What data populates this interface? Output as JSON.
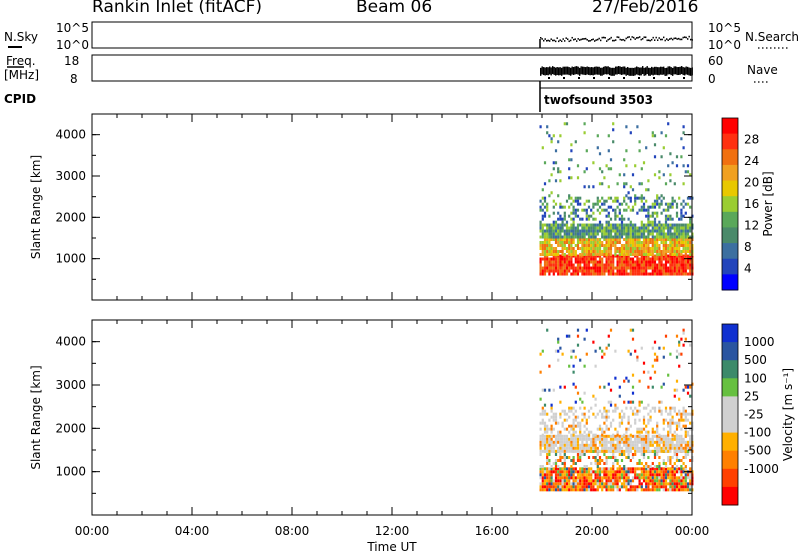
{
  "header": {
    "station": "Rankin Inlet (fitACF)",
    "beam": "Beam 06",
    "date": "27/Feb/2016"
  },
  "params_panel": {
    "left_top_label": "N.Sky",
    "left_top_ticks": [
      "10^5",
      "10^0"
    ],
    "right_top_label": "N.Search",
    "right_top_ticks": [
      "10^5",
      "10^0"
    ],
    "left_bottom_label_line1": "Freq.",
    "left_bottom_label_line2": "[MHz]",
    "left_bottom_ticks": [
      "18",
      "8"
    ],
    "right_bottom_label": "Nave",
    "right_bottom_ticks": [
      "60",
      "0"
    ],
    "cpid_label": "CPID",
    "cpid_value": "twofsound 3503"
  },
  "colors": {
    "power_scale": [
      "#0000ff",
      "#2244bb",
      "#3c6fa0",
      "#4a8a6a",
      "#5aa85a",
      "#9acd32",
      "#e8c800",
      "#f0a020",
      "#f07010",
      "#ff3010",
      "#ff0000"
    ],
    "velocity_scale": [
      "#ff0000",
      "#ff4000",
      "#ff8000",
      "#ffb000",
      "#d0d0d0",
      "#d0d0d0",
      "#66c040",
      "#3c8a6a",
      "#2a55a0",
      "#1030d0"
    ]
  },
  "chart_data": [
    {
      "type": "heatmap",
      "name": "power",
      "xlabel": "",
      "ylabel": "Slant Range [km]",
      "xlim": [
        "00:00",
        "00:00"
      ],
      "ylim": [
        0,
        4500
      ],
      "y_ticks": [
        1000,
        2000,
        3000,
        4000
      ],
      "colorbar_label": "Power [dB]",
      "colorbar_ticks": [
        4,
        8,
        12,
        16,
        20,
        24,
        28
      ],
      "colorbar_range": [
        0,
        32
      ],
      "data_region": {
        "t_start_hr": 17.9,
        "t_end_hr": 24.0,
        "range_min_km": 300,
        "range_max_km": 4300
      },
      "bands": [
        {
          "r0": 600,
          "r1": 1100,
          "level": "high"
        },
        {
          "r0": 1100,
          "r1": 1500,
          "level": "mid-high"
        },
        {
          "r0": 1500,
          "r1": 1850,
          "level": "mid"
        },
        {
          "r0": 1850,
          "r1": 2500,
          "level": "mixed"
        },
        {
          "r0": 2500,
          "r1": 4300,
          "level": "sparse"
        }
      ]
    },
    {
      "type": "heatmap",
      "name": "velocity",
      "xlabel": "Time UT",
      "ylabel": "Slant Range [km]",
      "x_ticks": [
        "00:00",
        "04:00",
        "08:00",
        "12:00",
        "16:00",
        "20:00",
        "00:00"
      ],
      "ylim": [
        0,
        4500
      ],
      "y_ticks": [
        1000,
        2000,
        3000,
        4000
      ],
      "colorbar_label": "Velocity [m s⁻¹]",
      "colorbar_ticks": [
        1000,
        500,
        100,
        25,
        -25,
        -100,
        -500,
        -1000
      ],
      "data_region": {
        "t_start_hr": 17.9,
        "t_end_hr": 24.0,
        "range_min_km": 300,
        "range_max_km": 4300
      },
      "bands": [
        {
          "r0": 600,
          "r1": 1100,
          "level": "negative-mixed"
        },
        {
          "r0": 1100,
          "r1": 1500,
          "level": "mixed"
        },
        {
          "r0": 1500,
          "r1": 1850,
          "level": "ground-scatter"
        },
        {
          "r0": 1850,
          "r1": 2500,
          "level": "ground-scatter"
        },
        {
          "r0": 2500,
          "r1": 4300,
          "level": "sparse"
        }
      ]
    }
  ]
}
